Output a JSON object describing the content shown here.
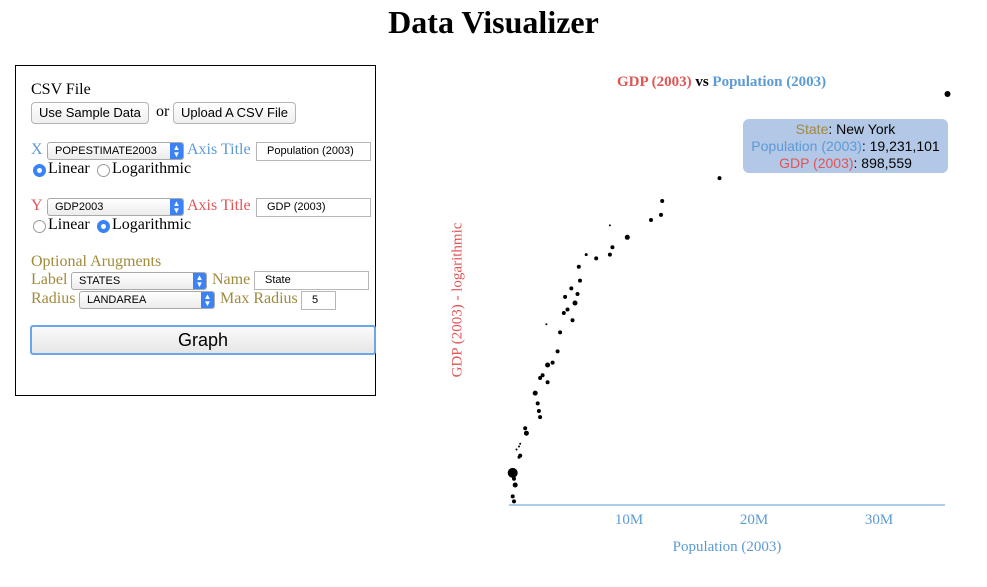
{
  "page": {
    "title": "Data Visualizer"
  },
  "form": {
    "csv_label": "CSV File",
    "sample_button": "Use Sample Data",
    "or_text": "or",
    "upload_button": "Upload A CSV File",
    "x": {
      "letter": "X",
      "field": "POPESTIMATE2003",
      "axis_title_label": "Axis Title",
      "axis_title_value": "Population (2003)",
      "linear_label": "Linear",
      "log_label": "Logarithmic",
      "scale": "linear"
    },
    "y": {
      "letter": "Y",
      "field": "GDP2003",
      "axis_title_label": "Axis Title",
      "axis_title_value": "GDP (2003)",
      "linear_label": "Linear",
      "log_label": "Logarithmic",
      "scale": "logarithmic"
    },
    "optional": {
      "heading": "Optional Arugments",
      "label_label": "Label",
      "label_field": "STATES",
      "name_label": "Name",
      "name_value": "State",
      "radius_label": "Radius",
      "radius_field": "LANDAREA",
      "max_radius_label": "Max Radius",
      "max_radius_value": "5"
    },
    "graph_button": "Graph"
  },
  "plot": {
    "title_y": "GDP (2003)",
    "title_vs": "vs",
    "title_x": "Population (2003)",
    "y_axis_label": "GDP (2003) - logarithmic",
    "x_axis_label": "Population (2003)",
    "x_ticks": [
      "10M",
      "20M",
      "30M"
    ],
    "tooltip": {
      "label_key": "State",
      "label_value": ": New York",
      "x_key": "Population (2003)",
      "x_value": ": 19,231,101",
      "y_key": "GDP (2003)",
      "y_value": ": 898,559"
    }
  },
  "colors": {
    "x": "#5b9bd5",
    "y": "#e05555",
    "label": "#a08a3c",
    "select_accent": "#3b82f6"
  },
  "chart_data": {
    "type": "scatter",
    "title": "GDP (2003) vs Population (2003)",
    "xlabel": "Population (2003)",
    "ylabel": "GDP (2003) - logarithmic",
    "xlim": [
      0,
      35000000
    ],
    "x_ticks": [
      10000000,
      20000000,
      30000000
    ],
    "y_scale": "log",
    "ylim": [
      18000,
      1360000
    ],
    "points": [
      {
        "x": 35200000,
        "y": 1360000,
        "r": 3
      },
      {
        "x": 19231101,
        "y": 898559,
        "r": 2
      },
      {
        "x": 16900000,
        "y": 560000,
        "r": 2
      },
      {
        "x": 12300000,
        "y": 440000,
        "r": 2
      },
      {
        "x": 12200000,
        "y": 380000,
        "r": 2
      },
      {
        "x": 11400000,
        "y": 360000,
        "r": 2
      },
      {
        "x": 9500000,
        "y": 300000,
        "r": 2.5
      },
      {
        "x": 8100000,
        "y": 340000,
        "r": 1
      },
      {
        "x": 8300000,
        "y": 270000,
        "r": 2
      },
      {
        "x": 8100000,
        "y": 250000,
        "r": 2
      },
      {
        "x": 7000000,
        "y": 240000,
        "r": 2
      },
      {
        "x": 6200000,
        "y": 250000,
        "r": 1.5
      },
      {
        "x": 5600000,
        "y": 220000,
        "r": 2
      },
      {
        "x": 5700000,
        "y": 190000,
        "r": 2
      },
      {
        "x": 5000000,
        "y": 175000,
        "r": 2
      },
      {
        "x": 5500000,
        "y": 165000,
        "r": 2
      },
      {
        "x": 4500000,
        "y": 160000,
        "r": 2
      },
      {
        "x": 5300000,
        "y": 150000,
        "r": 2.5
      },
      {
        "x": 4700000,
        "y": 140000,
        "r": 2
      },
      {
        "x": 4400000,
        "y": 135000,
        "r": 2
      },
      {
        "x": 5100000,
        "y": 125000,
        "r": 2
      },
      {
        "x": 3000000,
        "y": 120000,
        "r": 1
      },
      {
        "x": 4100000,
        "y": 110000,
        "r": 2
      },
      {
        "x": 3900000,
        "y": 90000,
        "r": 2
      },
      {
        "x": 3500000,
        "y": 80000,
        "r": 2
      },
      {
        "x": 3100000,
        "y": 78000,
        "r": 2.5
      },
      {
        "x": 2700000,
        "y": 70000,
        "r": 2
      },
      {
        "x": 2500000,
        "y": 68000,
        "r": 2
      },
      {
        "x": 3100000,
        "y": 65000,
        "r": 2
      },
      {
        "x": 2100000,
        "y": 58000,
        "r": 2.5
      },
      {
        "x": 2300000,
        "y": 52000,
        "r": 2
      },
      {
        "x": 2400000,
        "y": 48000,
        "r": 2
      },
      {
        "x": 2500000,
        "y": 45000,
        "r": 2
      },
      {
        "x": 1300000,
        "y": 40000,
        "r": 2
      },
      {
        "x": 1400000,
        "y": 38000,
        "r": 2.5
      },
      {
        "x": 900000,
        "y": 34000,
        "r": 1
      },
      {
        "x": 800000,
        "y": 33000,
        "r": 1
      },
      {
        "x": 600000,
        "y": 32000,
        "r": 1
      },
      {
        "x": 900000,
        "y": 30000,
        "r": 2
      },
      {
        "x": 800000,
        "y": 29500,
        "r": 1.5
      },
      {
        "x": 300000,
        "y": 25000,
        "r": 5
      },
      {
        "x": 400000,
        "y": 23500,
        "r": 2
      },
      {
        "x": 500000,
        "y": 22000,
        "r": 2.5
      },
      {
        "x": 300000,
        "y": 19500,
        "r": 2
      },
      {
        "x": 400000,
        "y": 18500,
        "r": 2
      }
    ]
  }
}
